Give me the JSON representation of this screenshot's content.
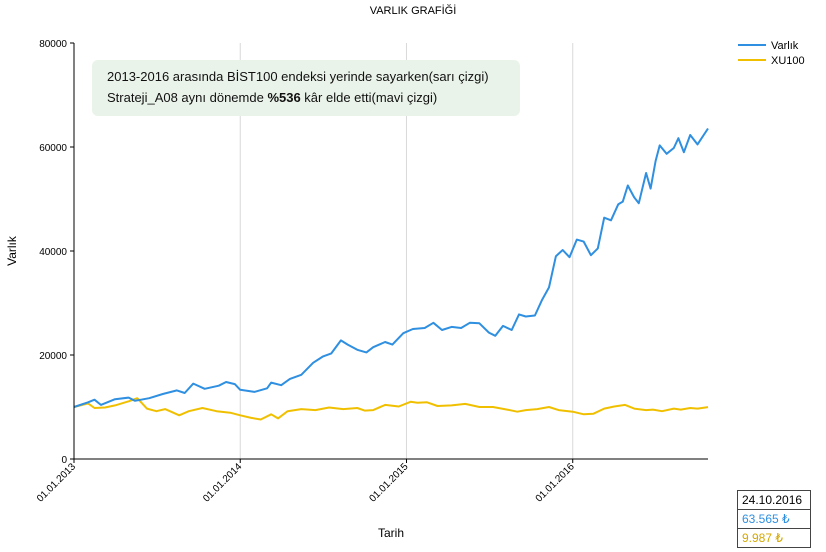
{
  "chart_data": {
    "type": "line",
    "title": "VARLIK GRAFİĞİ",
    "xlabel": "Tarih",
    "ylabel": "Varlık",
    "ylim": [
      0,
      80000
    ],
    "xlim": [
      "2013-01-01",
      "2016-10-24"
    ],
    "yticks": [
      "0",
      "20000",
      "40000",
      "60000",
      "80000"
    ],
    "xticks": [
      "01.01.2013",
      "01.01.2014",
      "01.01.2015",
      "01.01.2016"
    ],
    "xtick_dates": [
      "2013-01-01",
      "2014-01-01",
      "2015-01-01",
      "2016-01-01"
    ],
    "grid": "vertical",
    "legend": "top-right",
    "series": [
      {
        "name": "Varlık",
        "color": "#2f8fe0",
        "points": [
          [
            "2013-01-01",
            10000
          ],
          [
            "2013-02-01",
            10900
          ],
          [
            "2013-02-15",
            11400
          ],
          [
            "2013-03-01",
            10400
          ],
          [
            "2013-04-01",
            11500
          ],
          [
            "2013-05-01",
            11800
          ],
          [
            "2013-05-15",
            11200
          ],
          [
            "2013-06-15",
            11700
          ],
          [
            "2013-07-15",
            12500
          ],
          [
            "2013-08-15",
            13200
          ],
          [
            "2013-09-01",
            12700
          ],
          [
            "2013-09-20",
            14500
          ],
          [
            "2013-10-15",
            13500
          ],
          [
            "2013-11-15",
            14100
          ],
          [
            "2013-12-01",
            14800
          ],
          [
            "2013-12-20",
            14400
          ],
          [
            "2014-01-01",
            13300
          ],
          [
            "2014-02-01",
            12900
          ],
          [
            "2014-03-01",
            13600
          ],
          [
            "2014-03-10",
            14700
          ],
          [
            "2014-04-01",
            14200
          ],
          [
            "2014-04-20",
            15400
          ],
          [
            "2014-05-15",
            16200
          ],
          [
            "2014-06-10",
            18500
          ],
          [
            "2014-07-01",
            19700
          ],
          [
            "2014-07-20",
            20300
          ],
          [
            "2014-08-10",
            22800
          ],
          [
            "2014-08-25",
            22000
          ],
          [
            "2014-09-15",
            21000
          ],
          [
            "2014-10-05",
            20500
          ],
          [
            "2014-10-20",
            21500
          ],
          [
            "2014-11-15",
            22500
          ],
          [
            "2014-12-01",
            22000
          ],
          [
            "2014-12-25",
            24200
          ],
          [
            "2015-01-15",
            25000
          ],
          [
            "2015-02-10",
            25200
          ],
          [
            "2015-03-01",
            26200
          ],
          [
            "2015-03-20",
            24800
          ],
          [
            "2015-04-10",
            25400
          ],
          [
            "2015-05-01",
            25200
          ],
          [
            "2015-05-20",
            26200
          ],
          [
            "2015-06-10",
            26100
          ],
          [
            "2015-07-01",
            24300
          ],
          [
            "2015-07-15",
            23700
          ],
          [
            "2015-08-01",
            25600
          ],
          [
            "2015-08-20",
            24800
          ],
          [
            "2015-09-05",
            27800
          ],
          [
            "2015-09-20",
            27400
          ],
          [
            "2015-10-10",
            27600
          ],
          [
            "2015-10-25",
            30500
          ],
          [
            "2015-11-10",
            33000
          ],
          [
            "2015-11-25",
            39000
          ],
          [
            "2015-12-10",
            40200
          ],
          [
            "2015-12-25",
            38800
          ],
          [
            "2016-01-10",
            42200
          ],
          [
            "2016-01-25",
            41800
          ],
          [
            "2016-02-10",
            39200
          ],
          [
            "2016-02-25",
            40500
          ],
          [
            "2016-03-10",
            46400
          ],
          [
            "2016-03-25",
            45900
          ],
          [
            "2016-04-10",
            49000
          ],
          [
            "2016-04-20",
            49500
          ],
          [
            "2016-05-01",
            52600
          ],
          [
            "2016-05-15",
            50300
          ],
          [
            "2016-05-25",
            49200
          ],
          [
            "2016-06-10",
            55000
          ],
          [
            "2016-06-20",
            52000
          ],
          [
            "2016-07-01",
            57300
          ],
          [
            "2016-07-10",
            60300
          ],
          [
            "2016-07-25",
            58700
          ],
          [
            "2016-08-10",
            59800
          ],
          [
            "2016-08-20",
            61700
          ],
          [
            "2016-09-01",
            59000
          ],
          [
            "2016-09-15",
            62300
          ],
          [
            "2016-10-01",
            60500
          ],
          [
            "2016-10-24",
            63565
          ]
        ]
      },
      {
        "name": "XU100",
        "color": "#f0c000",
        "points": [
          [
            "2013-01-01",
            10000
          ],
          [
            "2013-02-01",
            10700
          ],
          [
            "2013-02-15",
            9800
          ],
          [
            "2013-03-10",
            9900
          ],
          [
            "2013-04-01",
            10300
          ],
          [
            "2013-05-01",
            11100
          ],
          [
            "2013-05-20",
            11700
          ],
          [
            "2013-06-10",
            9700
          ],
          [
            "2013-07-01",
            9200
          ],
          [
            "2013-07-20",
            9600
          ],
          [
            "2013-08-20",
            8400
          ],
          [
            "2013-09-10",
            9200
          ],
          [
            "2013-10-10",
            9800
          ],
          [
            "2013-11-10",
            9200
          ],
          [
            "2013-12-10",
            8900
          ],
          [
            "2014-01-01",
            8400
          ],
          [
            "2014-01-25",
            7900
          ],
          [
            "2014-02-15",
            7600
          ],
          [
            "2014-03-10",
            8600
          ],
          [
            "2014-03-25",
            7800
          ],
          [
            "2014-04-15",
            9200
          ],
          [
            "2014-05-15",
            9600
          ],
          [
            "2014-06-15",
            9400
          ],
          [
            "2014-07-15",
            9900
          ],
          [
            "2014-08-15",
            9600
          ],
          [
            "2014-09-15",
            9800
          ],
          [
            "2014-10-01",
            9300
          ],
          [
            "2014-10-20",
            9400
          ],
          [
            "2014-11-15",
            10400
          ],
          [
            "2014-12-15",
            10100
          ],
          [
            "2015-01-10",
            11000
          ],
          [
            "2015-01-25",
            10800
          ],
          [
            "2015-02-15",
            10900
          ],
          [
            "2015-03-10",
            10200
          ],
          [
            "2015-04-10",
            10300
          ],
          [
            "2015-05-10",
            10600
          ],
          [
            "2015-06-10",
            10000
          ],
          [
            "2015-07-10",
            10000
          ],
          [
            "2015-08-10",
            9500
          ],
          [
            "2015-09-01",
            9100
          ],
          [
            "2015-09-20",
            9400
          ],
          [
            "2015-10-15",
            9600
          ],
          [
            "2015-11-10",
            10000
          ],
          [
            "2015-12-01",
            9400
          ],
          [
            "2016-01-01",
            9100
          ],
          [
            "2016-01-25",
            8600
          ],
          [
            "2016-02-15",
            8700
          ],
          [
            "2016-03-10",
            9700
          ],
          [
            "2016-04-01",
            10100
          ],
          [
            "2016-04-25",
            10400
          ],
          [
            "2016-05-15",
            9700
          ],
          [
            "2016-06-10",
            9400
          ],
          [
            "2016-06-25",
            9500
          ],
          [
            "2016-07-15",
            9200
          ],
          [
            "2016-08-10",
            9700
          ],
          [
            "2016-08-25",
            9500
          ],
          [
            "2016-09-15",
            9800
          ],
          [
            "2016-10-01",
            9700
          ],
          [
            "2016-10-24",
            9987
          ]
        ]
      }
    ]
  },
  "annotation": {
    "line1": "2013-2016 arasında BİST100 endeksi yerinde sayarken(sarı çizgi)",
    "line2_pre": "Strateji_A08 aynı dönemde ",
    "line2_bold": "%536",
    "line2_post": " kâr elde etti(mavi çizgi)"
  },
  "info_box": {
    "date": "24.10.2016",
    "varlik_value": "63.565 ₺",
    "xu100_value": "9.987 ₺"
  }
}
